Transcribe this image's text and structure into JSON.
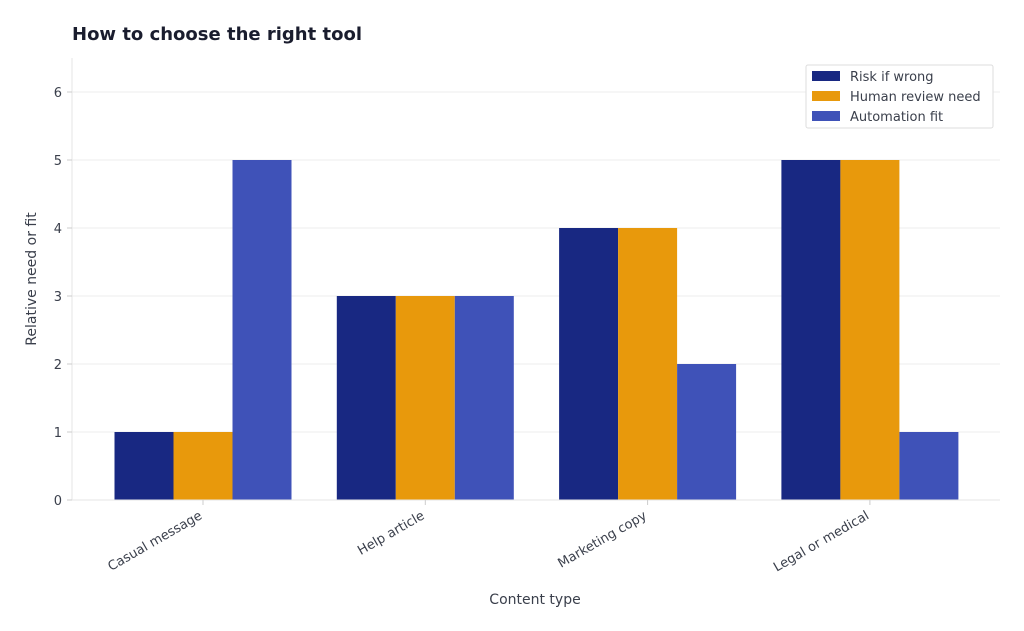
{
  "chart_data": {
    "type": "bar",
    "title": "How to choose the right tool",
    "xlabel": "Content type",
    "ylabel": "Relative need or fit",
    "categories": [
      "Casual message",
      "Help article",
      "Marketing copy",
      "Legal or medical"
    ],
    "series": [
      {
        "name": "Risk if wrong",
        "color": "#182882",
        "values": [
          1,
          3,
          4,
          5
        ]
      },
      {
        "name": "Human review need",
        "color": "#e8990c",
        "values": [
          1,
          3,
          4,
          5
        ]
      },
      {
        "name": "Automation fit",
        "color": "#3f52b8",
        "values": [
          5,
          3,
          2,
          1
        ]
      }
    ],
    "ylim": [
      0,
      6.5
    ],
    "yticks": [
      0,
      1,
      2,
      3,
      4,
      5,
      6
    ],
    "grid": true,
    "legend_position": "top-right"
  }
}
